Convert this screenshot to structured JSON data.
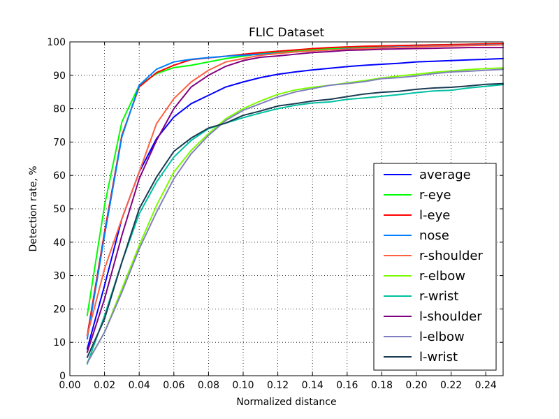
{
  "chart_data": {
    "type": "line",
    "title": "FLIC Dataset",
    "xlabel": "Normalized distance",
    "ylabel": "Detection rate, %",
    "xlim": [
      0.0,
      0.25
    ],
    "ylim": [
      0,
      100
    ],
    "grid": true,
    "legend_position": "lower-right",
    "x_ticks": [
      "0.00",
      "0.02",
      "0.04",
      "0.06",
      "0.08",
      "0.10",
      "0.12",
      "0.14",
      "0.16",
      "0.18",
      "0.20",
      "0.22",
      "0.24"
    ],
    "y_ticks": [
      "0",
      "10",
      "20",
      "30",
      "40",
      "50",
      "60",
      "70",
      "80",
      "90",
      "100"
    ],
    "x": [
      0.01,
      0.02,
      0.03,
      0.04,
      0.05,
      0.06,
      0.07,
      0.08,
      0.09,
      0.1,
      0.11,
      0.12,
      0.13,
      0.14,
      0.15,
      0.16,
      0.17,
      0.18,
      0.19,
      0.2,
      0.21,
      0.22,
      0.23,
      0.24,
      0.25
    ],
    "series": [
      {
        "name": "average",
        "color": "#0000ff",
        "values": [
          8,
          27,
          47,
          61,
          71,
          77.5,
          81.5,
          84,
          86.5,
          88,
          89.3,
          90.3,
          91,
          91.6,
          92.1,
          92.6,
          93,
          93.3,
          93.6,
          94,
          94.2,
          94.4,
          94.6,
          94.8,
          95
        ]
      },
      {
        "name": "r-eye",
        "color": "#00ff00",
        "values": [
          18,
          51,
          76,
          87,
          90.5,
          92.3,
          93,
          94,
          95,
          95.7,
          96.5,
          97,
          97.3,
          97.7,
          98,
          98.3,
          98.5,
          98.7,
          98.9,
          99,
          99.1,
          99.2,
          99.3,
          99.4,
          99.5
        ]
      },
      {
        "name": "l-eye",
        "color": "#ff0000",
        "values": [
          12,
          43,
          72,
          86.5,
          90.8,
          93,
          94.7,
          95.2,
          95.7,
          96.3,
          96.8,
          97.2,
          97.6,
          98,
          98.3,
          98.5,
          98.7,
          98.8,
          98.9,
          99,
          99.1,
          99.2,
          99.3,
          99.4,
          99.5
        ]
      },
      {
        "name": "nose",
        "color": "#0080ff",
        "values": [
          11,
          42,
          71.5,
          87,
          91.8,
          94,
          94.8,
          95.3,
          95.7,
          96,
          96.3,
          96.6,
          97,
          97.3,
          97.6,
          97.9,
          98.1,
          98.3,
          98.5,
          98.6,
          98.8,
          98.9,
          99,
          99.1,
          99.2
        ]
      },
      {
        "name": "r-shoulder",
        "color": "#ff6040",
        "values": [
          12,
          32,
          47,
          61,
          75.5,
          83,
          88,
          91.5,
          94,
          95,
          96,
          96.5,
          97,
          97.3,
          97.6,
          97.8,
          98,
          98.2,
          98.4,
          98.5,
          98.7,
          98.8,
          98.9,
          99,
          99.1
        ]
      },
      {
        "name": "r-elbow",
        "color": "#7cfc00",
        "values": [
          4,
          13,
          26,
          39,
          51,
          61,
          67.5,
          72.5,
          77,
          80,
          82.3,
          84.3,
          85.6,
          86.4,
          87,
          87.7,
          88.4,
          89.2,
          89.8,
          90.3,
          90.9,
          91.3,
          91.7,
          92,
          92.2
        ]
      },
      {
        "name": "r-wrist",
        "color": "#00c0a0",
        "values": [
          3.5,
          18,
          34,
          48.5,
          58,
          65.5,
          70.5,
          74,
          75.7,
          77.3,
          78.7,
          80,
          81,
          81.7,
          82,
          82.8,
          83.2,
          83.7,
          84.2,
          84.8,
          85.3,
          85.5,
          86.2,
          86.7,
          87.2
        ]
      },
      {
        "name": "l-shoulder",
        "color": "#800080",
        "values": [
          7,
          23,
          42,
          59,
          70.5,
          80,
          86.5,
          90,
          92.7,
          94.4,
          95.4,
          95.8,
          96.3,
          96.8,
          97.1,
          97.5,
          97.6,
          97.8,
          97.9,
          98,
          98.1,
          98.2,
          98.3,
          98.3,
          98.3
        ]
      },
      {
        "name": "l-elbow",
        "color": "#8080c0",
        "values": [
          3.8,
          13,
          25,
          38,
          49,
          59,
          66.5,
          72,
          76.5,
          79.5,
          81.5,
          83.5,
          85,
          86,
          87,
          87.5,
          88.1,
          89,
          89.3,
          89.8,
          90.5,
          91,
          91.2,
          91.5,
          91.8
        ]
      },
      {
        "name": "l-wrist",
        "color": "#1a3a52",
        "values": [
          5.5,
          17,
          34,
          50,
          59.5,
          67.2,
          71.2,
          74.2,
          75.7,
          78,
          79.3,
          80.8,
          81.5,
          82.3,
          82.8,
          83.6,
          84.4,
          84.9,
          85.2,
          85.8,
          86.2,
          86.4,
          86.8,
          87.3,
          87.5
        ]
      }
    ]
  }
}
